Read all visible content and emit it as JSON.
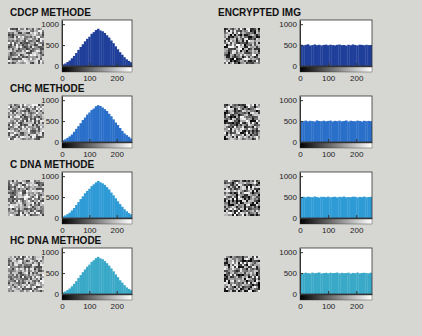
{
  "chart_data": [
    {
      "type": "histogram",
      "title": "CDCP METHODE",
      "color": "#1f3f9a",
      "bins": [
        0,
        8,
        16,
        24,
        32,
        40,
        48,
        56,
        64,
        72,
        80,
        88,
        96,
        104,
        112,
        120,
        128,
        136,
        144,
        152,
        160,
        168,
        176,
        184,
        192,
        200,
        208,
        216,
        224,
        232,
        240,
        248,
        256
      ],
      "values": [
        40,
        60,
        95,
        130,
        185,
        240,
        310,
        385,
        455,
        520,
        590,
        650,
        700,
        770,
        810,
        860,
        890,
        850,
        830,
        790,
        735,
        680,
        610,
        545,
        470,
        400,
        330,
        270,
        210,
        160,
        120,
        90
      ],
      "xlim": [
        0,
        256
      ],
      "xticks": [
        0,
        100,
        200
      ],
      "ylim": [
        0,
        1100
      ],
      "yticks": [
        0,
        500,
        1000
      ]
    },
    {
      "type": "histogram",
      "title": "ENCRYPTED IMG",
      "color": "#1f3f9a",
      "bins": [
        0,
        8,
        16,
        24,
        32,
        40,
        48,
        56,
        64,
        72,
        80,
        88,
        96,
        104,
        112,
        120,
        128,
        136,
        144,
        152,
        160,
        168,
        176,
        184,
        192,
        200,
        208,
        216,
        224,
        232,
        240,
        248,
        256
      ],
      "values": [
        510,
        495,
        505,
        520,
        490,
        500,
        515,
        498,
        507,
        492,
        503,
        511,
        496,
        509,
        500,
        494,
        506,
        513,
        499,
        502,
        488,
        508,
        497,
        515,
        501,
        493,
        510,
        504,
        496,
        507,
        499,
        502
      ],
      "xlim": [
        0,
        256
      ],
      "xticks": [
        0,
        100,
        200
      ],
      "ylim": [
        0,
        1100
      ],
      "yticks": [
        0,
        500,
        1000
      ]
    },
    {
      "type": "histogram",
      "title": "CHC METHODE",
      "color": "#2a6fc9",
      "bins": [
        0,
        8,
        16,
        24,
        32,
        40,
        48,
        56,
        64,
        72,
        80,
        88,
        96,
        104,
        112,
        120,
        128,
        136,
        144,
        152,
        160,
        168,
        176,
        184,
        192,
        200,
        208,
        216,
        224,
        232,
        240,
        248,
        256
      ],
      "values": [
        45,
        65,
        100,
        135,
        180,
        245,
        315,
        380,
        450,
        525,
        585,
        655,
        705,
        765,
        800,
        855,
        880,
        860,
        825,
        785,
        740,
        675,
        615,
        540,
        465,
        405,
        335,
        265,
        205,
        165,
        125,
        85
      ],
      "xlim": [
        0,
        256
      ],
      "xticks": [
        0,
        100,
        200
      ],
      "ylim": [
        0,
        1100
      ],
      "yticks": [
        0,
        500,
        1000
      ]
    },
    {
      "type": "histogram",
      "color": "#2a6fc9",
      "bins": [
        0,
        8,
        16,
        24,
        32,
        40,
        48,
        56,
        64,
        72,
        80,
        88,
        96,
        104,
        112,
        120,
        128,
        136,
        144,
        152,
        160,
        168,
        176,
        184,
        192,
        200,
        208,
        216,
        224,
        232,
        240,
        248,
        256
      ],
      "values": [
        505,
        498,
        512,
        494,
        507,
        500,
        489,
        516,
        502,
        497,
        509,
        495,
        504,
        512,
        491,
        506,
        499,
        510,
        494,
        503,
        515,
        492,
        508,
        500,
        496,
        511,
        503,
        490,
        507,
        498,
        505,
        500
      ],
      "xlim": [
        0,
        256
      ],
      "xticks": [
        0,
        100,
        200
      ],
      "ylim": [
        0,
        1100
      ],
      "yticks": [
        0,
        500,
        1000
      ]
    },
    {
      "type": "histogram",
      "title": "C DNA METHODE",
      "color": "#2f9bd6",
      "bins": [
        0,
        8,
        16,
        24,
        32,
        40,
        48,
        56,
        64,
        72,
        80,
        88,
        96,
        104,
        112,
        120,
        128,
        136,
        144,
        152,
        160,
        168,
        176,
        184,
        192,
        200,
        208,
        216,
        224,
        232,
        240,
        248,
        256
      ],
      "values": [
        40,
        62,
        92,
        128,
        182,
        238,
        312,
        382,
        452,
        518,
        592,
        648,
        698,
        762,
        805,
        850,
        885,
        855,
        828,
        792,
        738,
        682,
        608,
        542,
        472,
        398,
        332,
        268,
        208,
        162,
        118,
        88
      ],
      "xlim": [
        0,
        256
      ],
      "xticks": [
        0,
        100,
        200
      ],
      "ylim": [
        0,
        1100
      ],
      "yticks": [
        0,
        500,
        1000
      ]
    },
    {
      "type": "histogram",
      "color": "#2f9bd6",
      "bins": [
        0,
        8,
        16,
        24,
        32,
        40,
        48,
        56,
        64,
        72,
        80,
        88,
        96,
        104,
        112,
        120,
        128,
        136,
        144,
        152,
        160,
        168,
        176,
        184,
        192,
        200,
        208,
        216,
        224,
        232,
        240,
        248,
        256
      ],
      "values": [
        498,
        507,
        493,
        510,
        502,
        496,
        514,
        500,
        489,
        508,
        505,
        497,
        511,
        494,
        503,
        509,
        492,
        506,
        500,
        513,
        495,
        502,
        498,
        510,
        507,
        491,
        504,
        499,
        512,
        496,
        501,
        506
      ],
      "xlim": [
        0,
        256
      ],
      "xticks": [
        0,
        100,
        200
      ],
      "ylim": [
        0,
        1100
      ],
      "yticks": [
        0,
        500,
        1000
      ]
    },
    {
      "type": "histogram",
      "title": "HC DNA METHODE",
      "color": "#3aa9c8",
      "bins": [
        0,
        8,
        16,
        24,
        32,
        40,
        48,
        56,
        64,
        72,
        80,
        88,
        96,
        104,
        112,
        120,
        128,
        136,
        144,
        152,
        160,
        168,
        176,
        184,
        192,
        200,
        208,
        216,
        224,
        232,
        240,
        248,
        256
      ],
      "values": [
        42,
        63,
        97,
        132,
        183,
        242,
        308,
        383,
        453,
        522,
        588,
        652,
        702,
        768,
        808,
        858,
        888,
        852,
        832,
        788,
        737,
        678,
        612,
        543,
        468,
        402,
        328,
        272,
        212,
        158,
        122,
        92
      ],
      "xlim": [
        0,
        256
      ],
      "xticks": [
        0,
        100,
        200
      ],
      "ylim": [
        0,
        1100
      ],
      "yticks": [
        0,
        500,
        1000
      ]
    },
    {
      "type": "histogram",
      "color": "#3aa9c8",
      "bins": [
        0,
        8,
        16,
        24,
        32,
        40,
        48,
        56,
        64,
        72,
        80,
        88,
        96,
        104,
        112,
        120,
        128,
        136,
        144,
        152,
        160,
        168,
        176,
        184,
        192,
        200,
        208,
        216,
        224,
        232,
        240,
        248,
        256
      ],
      "values": [
        503,
        496,
        509,
        500,
        492,
        511,
        497,
        505,
        514,
        490,
        501,
        507,
        495,
        508,
        499,
        504,
        512,
        493,
        506,
        497,
        502,
        510,
        489,
        505,
        498,
        513,
        494,
        503,
        508,
        500,
        495,
        509
      ],
      "xlim": [
        0,
        256
      ],
      "xticks": [
        0,
        100,
        200
      ],
      "ylim": [
        0,
        1100
      ],
      "yticks": [
        0,
        500,
        1000
      ]
    }
  ]
}
